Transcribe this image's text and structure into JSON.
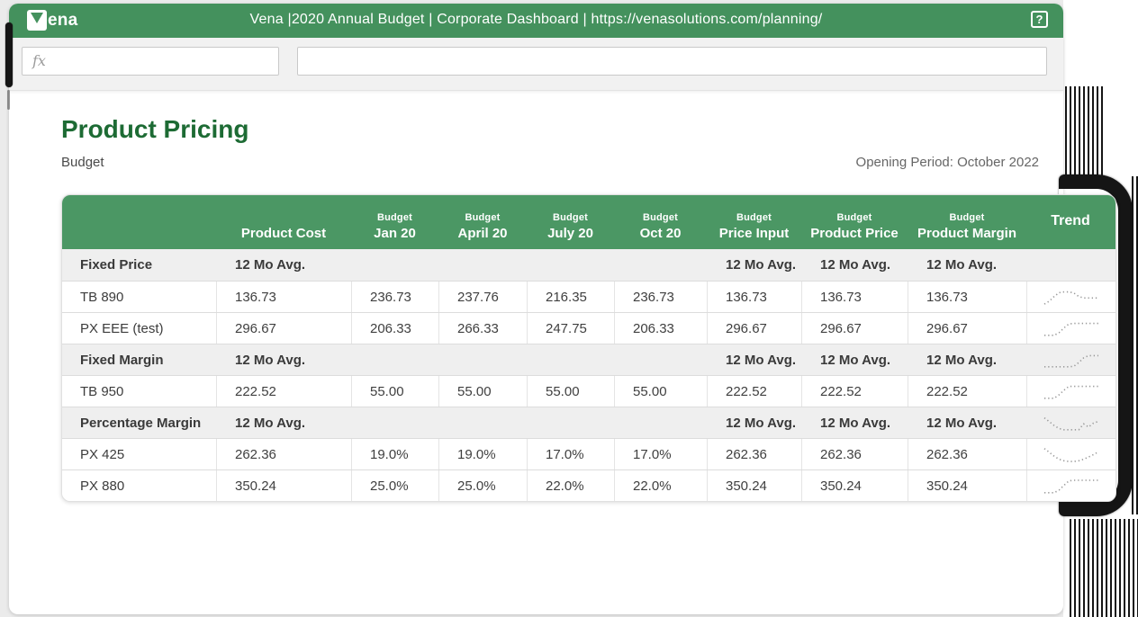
{
  "topbar": {
    "logo_text": "ena",
    "title": "Vena |2020 Annual Budget | Corporate Dashboard | https://venasolutions.com/planning/",
    "help_label": "?"
  },
  "formula_bar": {
    "fx_label": "fx",
    "name_box_value": "",
    "formula_value": ""
  },
  "page": {
    "title": "Product Pricing",
    "subtitle": "Budget",
    "opening_period": "Opening Period: October 2022"
  },
  "table": {
    "columns": [
      {
        "group": "",
        "label": ""
      },
      {
        "group": "",
        "label": "Product Cost"
      },
      {
        "group": "Budget",
        "label": "Jan 20"
      },
      {
        "group": "Budget",
        "label": "April 20"
      },
      {
        "group": "Budget",
        "label": "July 20"
      },
      {
        "group": "Budget",
        "label": "Oct 20"
      },
      {
        "group": "Budget",
        "label": "Price Input"
      },
      {
        "group": "Budget",
        "label": "Product Price"
      },
      {
        "group": "Budget",
        "label": "Product Margin"
      },
      {
        "group": "",
        "label": "Trend"
      }
    ],
    "rows": [
      {
        "type": "group",
        "label": "Fixed Price",
        "values": [
          "12 Mo Avg.",
          "",
          "",
          "",
          "",
          "12 Mo Avg.",
          "12 Mo Avg.",
          "12 Mo Avg."
        ],
        "spark": null
      },
      {
        "type": "data",
        "label": "TB 890",
        "values": [
          "136.73",
          "236.73",
          "237.76",
          "216.35",
          "236.73",
          "136.73",
          "136.73",
          "136.73"
        ],
        "spark": [
          0.05,
          0.25,
          0.55,
          0.8,
          0.85,
          0.85,
          0.78,
          0.55,
          0.45,
          0.45,
          0.45,
          0.45
        ]
      },
      {
        "type": "data",
        "label": "PX EEE (test)",
        "values": [
          "296.67",
          "206.33",
          "266.33",
          "247.75",
          "206.33",
          "296.67",
          "296.67",
          "296.67"
        ],
        "spark": [
          0.07,
          0.07,
          0.07,
          0.25,
          0.55,
          0.82,
          0.85,
          0.85,
          0.85,
          0.85,
          0.85,
          0.85
        ]
      },
      {
        "type": "group",
        "label": "Fixed Margin",
        "values": [
          "12 Mo Avg.",
          "",
          "",
          "",
          "",
          "12 Mo Avg.",
          "12 Mo Avg.",
          "12 Mo Avg."
        ],
        "spark": [
          0.07,
          0.07,
          0.07,
          0.07,
          0.07,
          0.07,
          0.1,
          0.35,
          0.65,
          0.8,
          0.8,
          0.8
        ]
      },
      {
        "type": "data",
        "label": "TB 950",
        "values": [
          "222.52",
          "55.00",
          "55.00",
          "55.00",
          "55.00",
          "222.52",
          "222.52",
          "222.52"
        ],
        "spark": [
          0.07,
          0.07,
          0.07,
          0.3,
          0.6,
          0.85,
          0.85,
          0.85,
          0.85,
          0.85,
          0.85,
          0.85
        ]
      },
      {
        "type": "group",
        "label": "Percentage Margin",
        "values": [
          "12 Mo Avg.",
          "",
          "",
          "",
          "",
          "12 Mo Avg.",
          "12 Mo Avg.",
          "12 Mo Avg."
        ],
        "spark": [
          0.85,
          0.6,
          0.35,
          0.15,
          0.07,
          0.07,
          0.07,
          0.07,
          0.45,
          0.25,
          0.5,
          0.62
        ]
      },
      {
        "type": "data",
        "label": "PX 425",
        "values": [
          "262.36",
          "19.0%",
          "19.0%",
          "17.0%",
          "17.0%",
          "262.36",
          "262.36",
          "262.36"
        ],
        "spark": [
          0.9,
          0.65,
          0.4,
          0.2,
          0.1,
          0.05,
          0.05,
          0.1,
          0.2,
          0.35,
          0.5,
          0.68
        ]
      },
      {
        "type": "data",
        "label": "PX 880",
        "values": [
          "350.24",
          "25.0%",
          "25.0%",
          "22.0%",
          "22.0%",
          "350.24",
          "350.24",
          "350.24"
        ],
        "spark": [
          0.07,
          0.07,
          0.07,
          0.25,
          0.55,
          0.85,
          0.88,
          0.88,
          0.88,
          0.88,
          0.88,
          0.88
        ]
      }
    ]
  },
  "colors": {
    "topbar_green": "#44915d",
    "header_green": "#4b9764",
    "title_green": "#1d6b34",
    "sketch_black": "#151515",
    "spark_gray": "#9a9a9a"
  }
}
